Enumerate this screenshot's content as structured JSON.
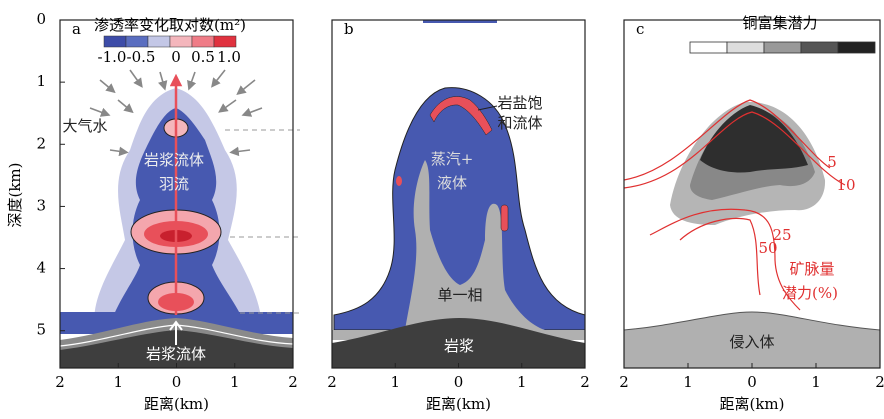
{
  "chart_data": [
    {
      "type": "contour",
      "panel_label": "a",
      "xlabel": "距离(km)",
      "ylabel": "深度(km)",
      "xlim": [
        -2,
        2
      ],
      "xticks": [
        {
          "value": -2,
          "label": "2"
        },
        {
          "value": -1,
          "label": "1"
        },
        0,
        1,
        2
      ],
      "ylim": [
        0,
        5.6
      ],
      "yticks": [
        0,
        1,
        2,
        3,
        4,
        5
      ],
      "colorbar": {
        "title": "渗透率变化取对数(m²)",
        "ticks": [
          {
            "value": -1,
            "label": "-1.0"
          },
          {
            "value": -0.5,
            "label": "-0.5"
          },
          0,
          0.5,
          {
            "value": 1,
            "label": "1.0"
          }
        ]
      },
      "annotations": [
        "大气水",
        "岩浆流体",
        "羽流",
        "岩浆流体"
      ]
    },
    {
      "type": "contour",
      "panel_label": "b",
      "xlabel": "距离(km)",
      "xlim": [
        -2,
        2
      ],
      "xticks": [
        {
          "value": -2,
          "label": "2"
        },
        {
          "value": -1,
          "label": "1"
        },
        0,
        1,
        2
      ],
      "ylim": [
        0,
        5.6
      ],
      "annotations": [
        "岩盐饱",
        "和流体",
        "蒸汽+",
        "液体",
        "单一相",
        "岩浆"
      ]
    },
    {
      "type": "contour",
      "panel_label": "c",
      "xlabel": "距离(km)",
      "xlim": [
        -2,
        2
      ],
      "xticks": [
        {
          "value": -2,
          "label": "2"
        },
        {
          "value": -1,
          "label": "1"
        },
        0,
        1,
        2
      ],
      "ylim": [
        0,
        5.6
      ],
      "colorbar": {
        "title": "铜富集潜力"
      },
      "contour_levels": [
        5,
        10,
        25,
        50
      ],
      "annotations": [
        "矿脉量",
        "潜力(%)",
        "侵入体"
      ]
    }
  ]
}
